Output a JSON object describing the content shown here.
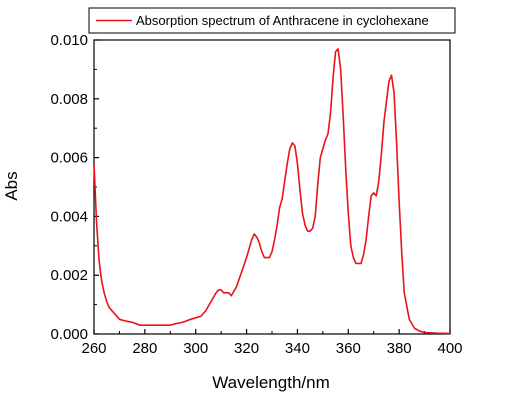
{
  "chart_data": {
    "type": "line",
    "legend": {
      "label": "Absorption spectrum of Anthracene in cyclohexane",
      "placement": "top-left",
      "frame": true
    },
    "xlabel": "Wavelength/nm",
    "ylabel": "Abs",
    "xlim": [
      260,
      400
    ],
    "ylim": [
      0,
      0.01
    ],
    "x_ticks": [
      260,
      280,
      300,
      320,
      340,
      360,
      380,
      400
    ],
    "y_ticks": [
      0.0,
      0.002,
      0.004,
      0.006,
      0.008,
      0.01
    ],
    "x_tick_labels": [
      "260",
      "280",
      "300",
      "320",
      "340",
      "360",
      "380",
      "400"
    ],
    "y_tick_labels": [
      "0.000",
      "0.002",
      "0.004",
      "0.006",
      "0.008",
      "0.010"
    ],
    "grid": false,
    "series": [
      {
        "name": "Absorption spectrum of Anthracene in cyclohexane",
        "color": "#e8131b",
        "x": [
          260,
          260.5,
          261,
          262,
          263,
          264,
          265,
          266,
          268,
          270,
          272,
          275,
          278,
          280,
          285,
          290,
          292,
          295,
          298,
          300,
          302,
          304,
          306,
          308,
          309,
          310,
          311,
          312,
          313,
          314,
          316,
          318,
          320,
          321,
          322,
          323,
          324,
          325,
          326,
          327,
          328,
          329,
          330,
          331,
          332,
          333,
          334,
          335,
          336,
          337,
          338,
          339,
          340,
          341,
          342,
          343,
          344,
          345,
          346,
          347,
          348,
          349,
          350,
          351,
          352,
          353,
          354,
          355,
          356,
          357,
          358,
          359,
          360,
          361,
          362,
          363,
          364,
          365,
          366,
          367,
          368,
          369,
          370,
          371,
          372,
          373,
          374,
          375,
          376,
          377,
          378,
          379,
          380,
          381,
          382,
          384,
          386,
          388,
          390,
          395,
          400
        ],
        "y": [
          0.0058,
          0.0048,
          0.0038,
          0.0025,
          0.0018,
          0.0014,
          0.0011,
          0.0009,
          0.0007,
          0.0005,
          0.00045,
          0.0004,
          0.0003,
          0.0003,
          0.0003,
          0.0003,
          0.00035,
          0.0004,
          0.0005,
          0.00055,
          0.0006,
          0.0008,
          0.0011,
          0.0014,
          0.0015,
          0.0015,
          0.0014,
          0.0014,
          0.0014,
          0.0013,
          0.0016,
          0.0021,
          0.0026,
          0.0029,
          0.0032,
          0.0034,
          0.0033,
          0.0031,
          0.0028,
          0.0026,
          0.0026,
          0.0026,
          0.0028,
          0.0032,
          0.0037,
          0.0043,
          0.0046,
          0.0052,
          0.0058,
          0.0063,
          0.0065,
          0.0064,
          0.0058,
          0.0049,
          0.0041,
          0.0037,
          0.0035,
          0.0035,
          0.0036,
          0.004,
          0.0051,
          0.006,
          0.0063,
          0.0066,
          0.0068,
          0.0075,
          0.0087,
          0.0096,
          0.0097,
          0.009,
          0.0074,
          0.0056,
          0.0041,
          0.003,
          0.0026,
          0.0024,
          0.0024,
          0.0024,
          0.0027,
          0.0032,
          0.004,
          0.0047,
          0.0048,
          0.0047,
          0.0052,
          0.0061,
          0.0072,
          0.0079,
          0.0086,
          0.0088,
          0.0082,
          0.0065,
          0.0045,
          0.0028,
          0.0014,
          0.0005,
          0.0002,
          0.0001,
          5e-05,
          3e-05,
          2e-05
        ]
      }
    ]
  }
}
